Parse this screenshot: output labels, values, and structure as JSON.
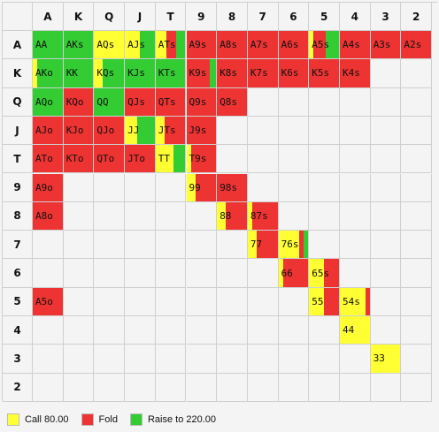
{
  "colors": {
    "call": "#ffff33",
    "fold": "#ee3333",
    "raise": "#33cc33",
    "empty": "#f4f4f4"
  },
  "columns": [
    "A",
    "K",
    "Q",
    "J",
    "T",
    "9",
    "8",
    "7",
    "6",
    "5",
    "4",
    "3",
    "2"
  ],
  "rows": [
    "A",
    "K",
    "Q",
    "J",
    "T",
    "9",
    "8",
    "7",
    "6",
    "5",
    "4",
    "3",
    "2"
  ],
  "cells": [
    {
      "r": 0,
      "c": 0,
      "label": "AA",
      "segs": [
        [
          "raise",
          1
        ]
      ]
    },
    {
      "r": 0,
      "c": 1,
      "label": "AKs",
      "segs": [
        [
          "raise",
          1
        ]
      ]
    },
    {
      "r": 0,
      "c": 2,
      "label": "AQs",
      "segs": [
        [
          "call",
          1
        ]
      ]
    },
    {
      "r": 0,
      "c": 3,
      "label": "AJs",
      "segs": [
        [
          "call",
          0.5
        ],
        [
          "raise",
          0.5
        ]
      ]
    },
    {
      "r": 0,
      "c": 4,
      "label": "ATs",
      "segs": [
        [
          "call",
          0.35
        ],
        [
          "fold",
          0.35
        ],
        [
          "raise",
          0.3
        ]
      ]
    },
    {
      "r": 0,
      "c": 5,
      "label": "A9s",
      "segs": [
        [
          "fold",
          1
        ]
      ]
    },
    {
      "r": 0,
      "c": 6,
      "label": "A8s",
      "segs": [
        [
          "fold",
          1
        ]
      ]
    },
    {
      "r": 0,
      "c": 7,
      "label": "A7s",
      "segs": [
        [
          "fold",
          1
        ]
      ]
    },
    {
      "r": 0,
      "c": 8,
      "label": "A6s",
      "segs": [
        [
          "fold",
          1
        ]
      ]
    },
    {
      "r": 0,
      "c": 9,
      "label": "A5s",
      "segs": [
        [
          "call",
          0.15
        ],
        [
          "fold",
          0.4
        ],
        [
          "raise",
          0.45
        ]
      ]
    },
    {
      "r": 0,
      "c": 10,
      "label": "A4s",
      "segs": [
        [
          "fold",
          1
        ]
      ]
    },
    {
      "r": 0,
      "c": 11,
      "label": "A3s",
      "segs": [
        [
          "fold",
          1
        ]
      ]
    },
    {
      "r": 0,
      "c": 12,
      "label": "A2s",
      "segs": [
        [
          "fold",
          1
        ]
      ]
    },
    {
      "r": 1,
      "c": 0,
      "label": "AKo",
      "segs": [
        [
          "call",
          0.15
        ],
        [
          "raise",
          0.85
        ]
      ]
    },
    {
      "r": 1,
      "c": 1,
      "label": "KK",
      "segs": [
        [
          "raise",
          1
        ]
      ]
    },
    {
      "r": 1,
      "c": 2,
      "label": "KQs",
      "segs": [
        [
          "call",
          0.3
        ],
        [
          "raise",
          0.7
        ]
      ]
    },
    {
      "r": 1,
      "c": 3,
      "label": "KJs",
      "segs": [
        [
          "raise",
          1
        ]
      ]
    },
    {
      "r": 1,
      "c": 4,
      "label": "KTs",
      "segs": [
        [
          "raise",
          1
        ]
      ]
    },
    {
      "r": 1,
      "c": 5,
      "label": "K9s",
      "segs": [
        [
          "fold",
          0.8
        ],
        [
          "raise",
          0.2
        ]
      ]
    },
    {
      "r": 1,
      "c": 6,
      "label": "K8s",
      "segs": [
        [
          "fold",
          1
        ]
      ]
    },
    {
      "r": 1,
      "c": 7,
      "label": "K7s",
      "segs": [
        [
          "fold",
          1
        ]
      ]
    },
    {
      "r": 1,
      "c": 8,
      "label": "K6s",
      "segs": [
        [
          "fold",
          1
        ]
      ]
    },
    {
      "r": 1,
      "c": 9,
      "label": "K5s",
      "segs": [
        [
          "fold",
          1
        ]
      ]
    },
    {
      "r": 1,
      "c": 10,
      "label": "K4s",
      "segs": [
        [
          "fold",
          1
        ]
      ]
    },
    {
      "r": 2,
      "c": 0,
      "label": "AQo",
      "segs": [
        [
          "raise",
          1
        ]
      ]
    },
    {
      "r": 2,
      "c": 1,
      "label": "KQo",
      "segs": [
        [
          "fold",
          1
        ]
      ]
    },
    {
      "r": 2,
      "c": 2,
      "label": "QQ",
      "segs": [
        [
          "raise",
          1
        ]
      ]
    },
    {
      "r": 2,
      "c": 3,
      "label": "QJs",
      "segs": [
        [
          "fold",
          1
        ]
      ]
    },
    {
      "r": 2,
      "c": 4,
      "label": "QTs",
      "segs": [
        [
          "fold",
          1
        ]
      ]
    },
    {
      "r": 2,
      "c": 5,
      "label": "Q9s",
      "segs": [
        [
          "fold",
          1
        ]
      ]
    },
    {
      "r": 2,
      "c": 6,
      "label": "Q8s",
      "segs": [
        [
          "fold",
          1
        ]
      ]
    },
    {
      "r": 3,
      "c": 0,
      "label": "AJo",
      "segs": [
        [
          "fold",
          1
        ]
      ]
    },
    {
      "r": 3,
      "c": 1,
      "label": "KJo",
      "segs": [
        [
          "fold",
          1
        ]
      ]
    },
    {
      "r": 3,
      "c": 2,
      "label": "QJo",
      "segs": [
        [
          "fold",
          1
        ]
      ]
    },
    {
      "r": 3,
      "c": 3,
      "label": "JJ",
      "segs": [
        [
          "call",
          0.4
        ],
        [
          "raise",
          0.6
        ]
      ]
    },
    {
      "r": 3,
      "c": 4,
      "label": "JTs",
      "segs": [
        [
          "call",
          0.3
        ],
        [
          "fold",
          0.7
        ]
      ]
    },
    {
      "r": 3,
      "c": 5,
      "label": "J9s",
      "segs": [
        [
          "fold",
          1
        ]
      ]
    },
    {
      "r": 4,
      "c": 0,
      "label": "ATo",
      "segs": [
        [
          "fold",
          1
        ]
      ]
    },
    {
      "r": 4,
      "c": 1,
      "label": "KTo",
      "segs": [
        [
          "fold",
          1
        ]
      ]
    },
    {
      "r": 4,
      "c": 2,
      "label": "QTo",
      "segs": [
        [
          "fold",
          1
        ]
      ]
    },
    {
      "r": 4,
      "c": 3,
      "label": "JTo",
      "segs": [
        [
          "fold",
          1
        ]
      ]
    },
    {
      "r": 4,
      "c": 4,
      "label": "TT",
      "segs": [
        [
          "call",
          0.6
        ],
        [
          "raise",
          0.4
        ]
      ]
    },
    {
      "r": 4,
      "c": 5,
      "label": "T9s",
      "segs": [
        [
          "call",
          0.15
        ],
        [
          "fold",
          0.85
        ]
      ]
    },
    {
      "r": 5,
      "c": 0,
      "label": "A9o",
      "segs": [
        [
          "fold",
          1
        ]
      ]
    },
    {
      "r": 5,
      "c": 5,
      "label": "99",
      "segs": [
        [
          "call",
          0.3
        ],
        [
          "fold",
          0.7
        ]
      ]
    },
    {
      "r": 5,
      "c": 6,
      "label": "98s",
      "segs": [
        [
          "fold",
          1
        ]
      ]
    },
    {
      "r": 6,
      "c": 0,
      "label": "A8o",
      "segs": [
        [
          "fold",
          1
        ]
      ]
    },
    {
      "r": 6,
      "c": 6,
      "label": "88",
      "segs": [
        [
          "call",
          0.3
        ],
        [
          "fold",
          0.7
        ]
      ]
    },
    {
      "r": 6,
      "c": 7,
      "label": "87s",
      "segs": [
        [
          "call",
          0.15
        ],
        [
          "fold",
          0.85
        ]
      ]
    },
    {
      "r": 7,
      "c": 7,
      "label": "77",
      "segs": [
        [
          "call",
          0.3
        ],
        [
          "fold",
          0.7
        ]
      ]
    },
    {
      "r": 7,
      "c": 8,
      "label": "76s",
      "segs": [
        [
          "call",
          0.7
        ],
        [
          "fold",
          0.15
        ],
        [
          "raise",
          0.15
        ]
      ]
    },
    {
      "r": 8,
      "c": 8,
      "label": "66",
      "segs": [
        [
          "call",
          0.15
        ],
        [
          "fold",
          0.85
        ]
      ]
    },
    {
      "r": 8,
      "c": 9,
      "label": "65s",
      "segs": [
        [
          "call",
          0.5
        ],
        [
          "fold",
          0.5
        ]
      ]
    },
    {
      "r": 9,
      "c": 0,
      "label": "A5o",
      "segs": [
        [
          "fold",
          1
        ]
      ]
    },
    {
      "r": 9,
      "c": 9,
      "label": "55",
      "segs": [
        [
          "call",
          0.5
        ],
        [
          "fold",
          0.5
        ]
      ]
    },
    {
      "r": 9,
      "c": 10,
      "label": "54s",
      "segs": [
        [
          "call",
          0.85
        ],
        [
          "fold",
          0.15
        ]
      ]
    },
    {
      "r": 10,
      "c": 10,
      "label": "44",
      "segs": [
        [
          "call",
          1
        ]
      ]
    },
    {
      "r": 11,
      "c": 11,
      "label": "33",
      "segs": [
        [
          "call",
          1
        ]
      ]
    }
  ],
  "legend": [
    {
      "key": "call",
      "label": "Call 80.00"
    },
    {
      "key": "fold",
      "label": "Fold"
    },
    {
      "key": "raise",
      "label": "Raise to 220.00"
    }
  ]
}
